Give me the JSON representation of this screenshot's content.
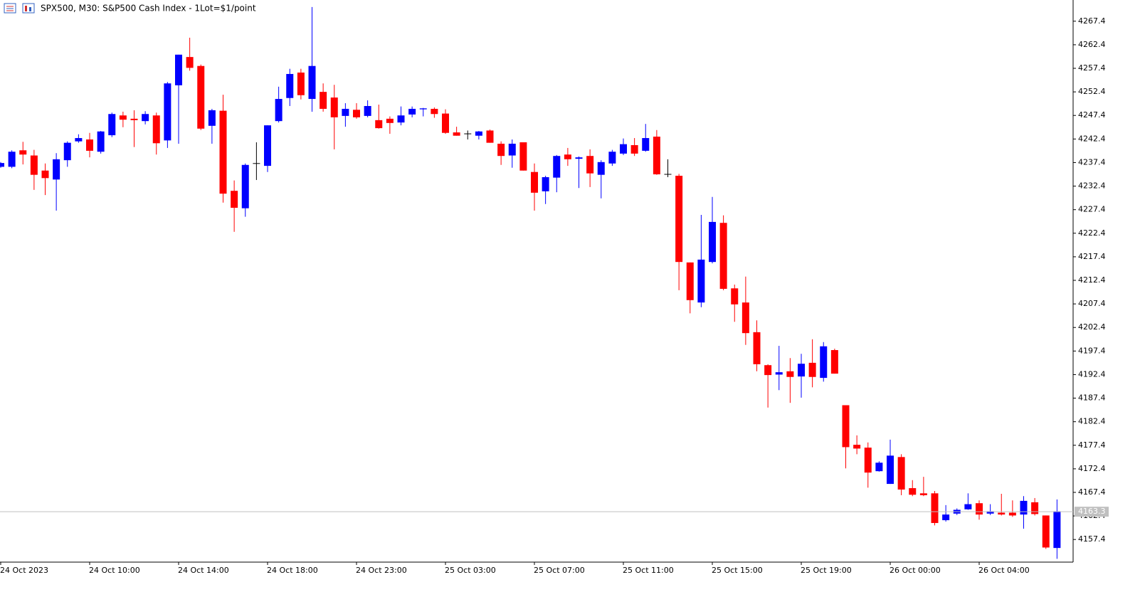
{
  "chart_data": {
    "type": "candlestick",
    "title": "SPX500, M30:  S&P500 Cash Index - 1Lot=$1/point",
    "categories": [
      "24 Oct 2023",
      null,
      null,
      null,
      null,
      null,
      null,
      null,
      "24 Oct 10:00",
      null,
      null,
      null,
      null,
      null,
      null,
      null,
      "24 Oct 14:00",
      null,
      null,
      null,
      null,
      null,
      null,
      null,
      "24 Oct 18:00",
      null,
      null,
      null,
      null,
      null,
      null,
      null,
      "24 Oct 23:00",
      null,
      null,
      null,
      null,
      null,
      null,
      null,
      "25 Oct 03:00",
      null,
      null,
      null,
      null,
      null,
      null,
      null,
      "25 Oct 07:00",
      null,
      null,
      null,
      null,
      null,
      null,
      null,
      "25 Oct 11:00",
      null,
      null,
      null,
      null,
      null,
      null,
      null,
      "25 Oct 15:00",
      null,
      null,
      null,
      null,
      null,
      null,
      null,
      "25 Oct 19:00",
      null,
      null,
      null,
      null,
      null,
      null,
      null,
      "26 Oct 00:00",
      null,
      null,
      null,
      null,
      null,
      null,
      null,
      "26 Oct 04:00",
      null,
      null,
      null,
      null,
      null,
      null,
      null
    ],
    "open": [
      4236.5,
      4236.5,
      4240.0,
      4238.9,
      4235.7,
      4233.8,
      4237.9,
      4241.9,
      4242.3,
      4239.7,
      4243.2,
      4247.4,
      4246.7,
      4246.2,
      4247.4,
      4242.1,
      4253.8,
      4259.8,
      4257.9,
      4245.2,
      4248.4,
      4231.4,
      4227.7,
      4237.2,
      4236.7,
      4246.2,
      4251.1,
      4256.5,
      4250.9,
      4252.4,
      4251.2,
      4247.3,
      4248.6,
      4247.3,
      4246.4,
      4246.7,
      4245.9,
      4247.6,
      4248.7,
      4248.8,
      4247.8,
      4243.8,
      4243.5,
      4243.1,
      4244.2,
      4241.4,
      4238.9,
      4241.7,
      4235.4,
      4231.3,
      4234.2,
      4239.1,
      4238.2,
      4238.8,
      4234.8,
      4237.2,
      4239.3,
      4241.1,
      4239.9,
      4242.9,
      4234.9,
      4234.6,
      4216.2,
      4207.7,
      4216.3,
      4224.6,
      4210.7,
      4207.7,
      4201.4,
      4194.4,
      4192.4,
      4193.1,
      4192.0,
      4194.9,
      4191.7,
      4197.6,
      4185.9,
      4177.5,
      4176.9,
      4171.9,
      4169.2,
      4174.9,
      4168.3,
      4167.2,
      4167.2,
      4161.5,
      4162.9,
      4163.8,
      4165.1,
      4162.9,
      4163.1,
      4163.1,
      4162.7,
      4165.3,
      4162.5,
      4155.6
    ],
    "high": [
      4237.5,
      4240.0,
      4241.8,
      4240.1,
      4237.2,
      4239.4,
      4241.9,
      4243.4,
      4243.7,
      4244.1,
      4248.0,
      4248.2,
      4248.5,
      4248.3,
      4248.0,
      4254.5,
      4260.3,
      4263.9,
      4258.2,
      4248.8,
      4251.8,
      4233.6,
      4237.2,
      4241.7,
      4245.3,
      4253.5,
      4257.3,
      4257.3,
      4270.4,
      4254.2,
      4253.9,
      4250.0,
      4250.0,
      4250.6,
      4249.7,
      4247.2,
      4249.3,
      4249.3,
      4249.0,
      4249.1,
      4248.7,
      4245.0,
      4244.2,
      4244.1,
      4244.4,
      4241.9,
      4242.3,
      4241.7,
      4237.2,
      4234.6,
      4239.0,
      4240.5,
      4238.7,
      4240.2,
      4237.9,
      4240.1,
      4242.5,
      4242.6,
      4245.6,
      4244.3,
      4238.1,
      4235.0,
      4216.2,
      4226.3,
      4230.1,
      4226.2,
      4211.5,
      4213.2,
      4203.9,
      4194.6,
      4198.5,
      4195.9,
      4196.8,
      4199.9,
      4199.3,
      4197.9,
      4185.9,
      4179.5,
      4178.0,
      4174.0,
      4178.6,
      4175.5,
      4170.0,
      4170.7,
      4167.7,
      4164.7,
      4164.0,
      4167.2,
      4165.7,
      4164.9,
      4167.1,
      4165.7,
      4166.6,
      4166.2,
      4162.5,
      4165.9
    ],
    "low": [
      4236.3,
      4236.2,
      4237.0,
      4231.6,
      4230.5,
      4227.2,
      4236.5,
      4241.6,
      4238.5,
      4239.3,
      4242.8,
      4244.9,
      4240.7,
      4245.5,
      4239.1,
      4240.5,
      4241.4,
      4256.9,
      4244.3,
      4241.4,
      4228.9,
      4222.7,
      4225.9,
      4233.7,
      4235.4,
      4245.9,
      4249.4,
      4250.8,
      4248.2,
      4248.2,
      4240.2,
      4245.0,
      4246.7,
      4247.0,
      4244.6,
      4243.5,
      4245.3,
      4247.0,
      4247.2,
      4246.9,
      4243.5,
      4243.1,
      4242.3,
      4242.3,
      4241.6,
      4236.9,
      4236.3,
      4235.7,
      4227.2,
      4228.6,
      4231.1,
      4236.7,
      4232.0,
      4232.2,
      4229.8,
      4236.7,
      4239.0,
      4238.8,
      4239.7,
      4234.8,
      4234.3,
      4210.3,
      4205.4,
      4206.7,
      4216.0,
      4210.3,
      4203.6,
      4198.7,
      4193.1,
      4185.4,
      4189.1,
      4186.4,
      4187.5,
      4189.7,
      4190.9,
      4192.6,
      4172.5,
      4175.5,
      4168.4,
      4171.8,
      4169.2,
      4166.8,
      4166.6,
      4166.6,
      4160.4,
      4161.2,
      4162.6,
      4163.7,
      4161.6,
      4162.6,
      4162.5,
      4162.2,
      4159.7,
      4162.5,
      4155.4,
      4153.3
    ],
    "close": [
      4237.3,
      4239.7,
      4239.1,
      4234.8,
      4234.1,
      4238.1,
      4241.6,
      4242.6,
      4239.9,
      4244.0,
      4247.7,
      4246.5,
      4246.4,
      4247.7,
      4241.5,
      4254.2,
      4260.3,
      4257.5,
      4244.6,
      4248.5,
      4230.8,
      4227.8,
      4236.9,
      4237.2,
      4245.3,
      4250.9,
      4256.2,
      4251.7,
      4257.9,
      4248.8,
      4247.0,
      4248.8,
      4247.0,
      4249.4,
      4244.7,
      4245.8,
      4247.4,
      4248.8,
      4248.9,
      4247.7,
      4243.7,
      4243.1,
      4243.5,
      4244.0,
      4241.6,
      4238.8,
      4241.4,
      4235.7,
      4231.0,
      4234.3,
      4238.8,
      4238.1,
      4238.5,
      4235.1,
      4237.5,
      4239.7,
      4241.3,
      4239.3,
      4242.6,
      4234.9,
      4234.9,
      4216.3,
      4208.2,
      4216.8,
      4224.8,
      4210.6,
      4207.3,
      4201.2,
      4194.6,
      4192.3,
      4192.9,
      4191.9,
      4194.7,
      4191.9,
      4198.4,
      4192.6,
      4177.0,
      4176.7,
      4171.6,
      4173.7,
      4175.2,
      4168.0,
      4166.9,
      4166.8,
      4160.9,
      4162.7,
      4163.7,
      4164.9,
      4162.7,
      4163.4,
      4162.7,
      4162.5,
      4165.6,
      4162.8,
      4155.7,
      4163.4
    ],
    "up_color": "#0000ff",
    "down_color": "#ff0000",
    "doji_color": "#000000",
    "ylim": [
      4152.6,
      4271.9
    ],
    "yticks": [
      4157.4,
      4162.4,
      4167.4,
      4172.4,
      4177.4,
      4182.4,
      4187.4,
      4192.4,
      4197.4,
      4202.4,
      4207.4,
      4212.4,
      4217.4,
      4222.4,
      4227.4,
      4232.4,
      4237.4,
      4242.4,
      4247.4,
      4252.4,
      4257.4,
      4262.4,
      4267.4
    ],
    "last_price": 4163.3
  }
}
